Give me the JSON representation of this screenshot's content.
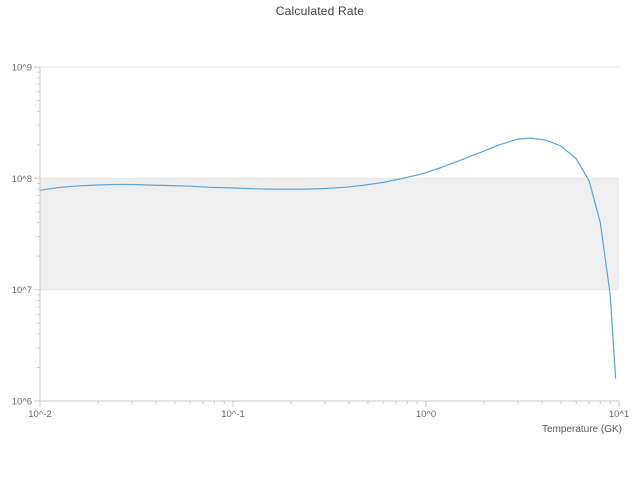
{
  "chart_data": {
    "type": "line",
    "title": "Calculated Rate",
    "xlabel": "Temperature (GK)",
    "ylabel": "",
    "x_scale": "log",
    "y_scale": "log",
    "xlim": [
      0.01,
      10
    ],
    "ylim": [
      1000000,
      1000000000
    ],
    "grid": "horizontal-only",
    "x_ticks": [
      {
        "value": 0.01,
        "label": "10^-2"
      },
      {
        "value": 0.1,
        "label": "10^-1"
      },
      {
        "value": 1,
        "label": "10^0"
      },
      {
        "value": 10,
        "label": "10^1"
      }
    ],
    "y_ticks": [
      {
        "value": 1000000,
        "label": "10^6"
      },
      {
        "value": 10000000,
        "label": "10^7"
      },
      {
        "value": 100000000,
        "label": "10^8"
      },
      {
        "value": 1000000000,
        "label": "10^9"
      }
    ],
    "band": {
      "y_from": 10000000,
      "y_to": 100000000,
      "color": "#efefef"
    },
    "colors": {
      "line": "#5ba3d8",
      "grid": "#e6e6e6",
      "axis": "#c8c8c8",
      "tick_label": "#666666",
      "title": "#3f3f3f"
    },
    "series": [
      {
        "name": "Calculated Rate",
        "x": [
          0.01,
          0.012,
          0.015,
          0.019,
          0.024,
          0.03,
          0.038,
          0.048,
          0.06,
          0.076,
          0.096,
          0.12,
          0.15,
          0.19,
          0.24,
          0.3,
          0.38,
          0.48,
          0.6,
          0.76,
          0.96,
          1.2,
          1.5,
          1.9,
          2.4,
          3.0,
          3.5,
          4.2,
          5.0,
          6.0,
          7.0,
          8.0,
          9.0,
          9.6
        ],
        "y": [
          78000000.0,
          82000000.0,
          85000000.0,
          87000000.0,
          88000000.0,
          88000000.0,
          87000000.0,
          86000000.0,
          85000000.0,
          83000000.0,
          82000000.0,
          81000000.0,
          80000000.0,
          80000000.0,
          80000000.0,
          81000000.0,
          83000000.0,
          87000000.0,
          92000000.0,
          100000000.0,
          110000000.0,
          125000000.0,
          145000000.0,
          170000000.0,
          200000000.0,
          225000000.0,
          230000000.0,
          220000000.0,
          195000000.0,
          150000000.0,
          95000000.0,
          40000000.0,
          9000000.0,
          1600000.0
        ]
      }
    ]
  }
}
